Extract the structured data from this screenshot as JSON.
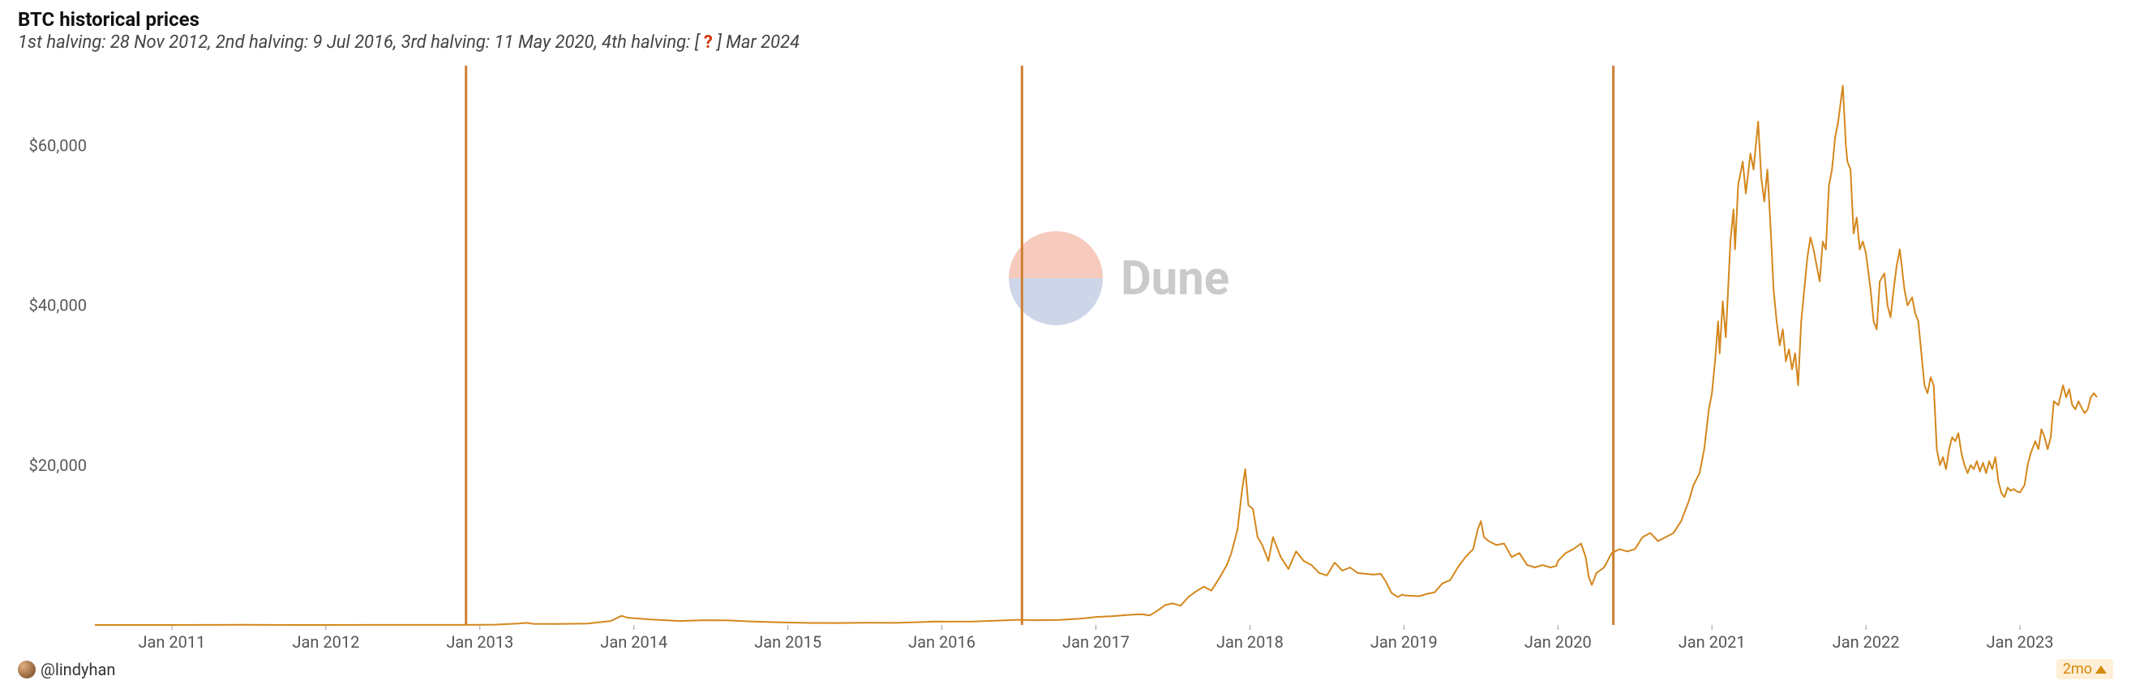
{
  "title": "BTC historical prices",
  "subtitle": {
    "prefix": "1st halving: 28 Nov 2012, 2nd halving: 9 Jul 2016, 3rd halving: 11 May 2020, 4th halving: [ ",
    "qmark": "?",
    "suffix": " ] Mar 2024"
  },
  "author": "@lindyhan",
  "age_badge": "2mo",
  "chart": {
    "type": "line",
    "line_color": "#d4871c",
    "line_width": 2,
    "background_color": "#ffffff",
    "halving_line_color": "#cd7f32",
    "halving_line_width": 3,
    "ylim": [
      0,
      70000
    ],
    "ytick_step": 20000,
    "ytick_labels": [
      "$20,000",
      "$40,000",
      "$60,000"
    ],
    "ytick_values": [
      20000,
      40000,
      60000
    ],
    "xlim": [
      2010.5,
      2023.5
    ],
    "xtick_values": [
      2011,
      2012,
      2013,
      2014,
      2015,
      2016,
      2017,
      2018,
      2019,
      2020,
      2021,
      2022,
      2023
    ],
    "xtick_labels": [
      "Jan 2011",
      "Jan 2012",
      "Jan 2013",
      "Jan 2014",
      "Jan 2015",
      "Jan 2016",
      "Jan 2017",
      "Jan 2018",
      "Jan 2019",
      "Jan 2020",
      "Jan 2021",
      "Jan 2022",
      "Jan 2023"
    ],
    "halvings_x": [
      2012.91,
      2016.52,
      2020.36
    ],
    "tick_font_size": 20,
    "tick_color": "#555555",
    "axis_line_color": "#cccccc",
    "watermark": {
      "text": "Dune",
      "top_color": "#f4b3a3",
      "bottom_color": "#b8c3de",
      "text_color": "#bdbdbd"
    },
    "series": [
      [
        2010.5,
        0.1
      ],
      [
        2010.7,
        0.2
      ],
      [
        2010.9,
        0.3
      ],
      [
        2011.0,
        0.4
      ],
      [
        2011.3,
        8
      ],
      [
        2011.45,
        30
      ],
      [
        2011.6,
        12
      ],
      [
        2011.8,
        5
      ],
      [
        2012.0,
        5
      ],
      [
        2012.3,
        6
      ],
      [
        2012.6,
        10
      ],
      [
        2012.9,
        13
      ],
      [
        2013.0,
        20
      ],
      [
        2013.1,
        40
      ],
      [
        2013.25,
        180
      ],
      [
        2013.3,
        260
      ],
      [
        2013.35,
        140
      ],
      [
        2013.5,
        120
      ],
      [
        2013.7,
        180
      ],
      [
        2013.85,
        500
      ],
      [
        2013.92,
        1150
      ],
      [
        2013.96,
        900
      ],
      [
        2014.0,
        850
      ],
      [
        2014.1,
        700
      ],
      [
        2014.2,
        600
      ],
      [
        2014.3,
        500
      ],
      [
        2014.45,
        600
      ],
      [
        2014.6,
        580
      ],
      [
        2014.75,
        450
      ],
      [
        2014.9,
        350
      ],
      [
        2015.0,
        300
      ],
      [
        2015.15,
        250
      ],
      [
        2015.3,
        240
      ],
      [
        2015.5,
        280
      ],
      [
        2015.7,
        260
      ],
      [
        2015.85,
        350
      ],
      [
        2015.95,
        430
      ],
      [
        2016.0,
        420
      ],
      [
        2016.2,
        430
      ],
      [
        2016.4,
        570
      ],
      [
        2016.5,
        650
      ],
      [
        2016.6,
        600
      ],
      [
        2016.75,
        620
      ],
      [
        2016.9,
        780
      ],
      [
        2016.98,
        950
      ],
      [
        2017.0,
        1000
      ],
      [
        2017.1,
        1100
      ],
      [
        2017.2,
        1250
      ],
      [
        2017.3,
        1350
      ],
      [
        2017.35,
        1200
      ],
      [
        2017.4,
        1800
      ],
      [
        2017.45,
        2500
      ],
      [
        2017.5,
        2700
      ],
      [
        2017.55,
        2400
      ],
      [
        2017.6,
        3500
      ],
      [
        2017.65,
        4200
      ],
      [
        2017.7,
        4800
      ],
      [
        2017.75,
        4300
      ],
      [
        2017.8,
        5800
      ],
      [
        2017.85,
        7500
      ],
      [
        2017.88,
        9000
      ],
      [
        2017.92,
        12000
      ],
      [
        2017.95,
        17000
      ],
      [
        2017.97,
        19500
      ],
      [
        2017.99,
        15000
      ],
      [
        2018.02,
        14500
      ],
      [
        2018.05,
        11000
      ],
      [
        2018.08,
        10000
      ],
      [
        2018.12,
        8000
      ],
      [
        2018.15,
        11000
      ],
      [
        2018.2,
        8500
      ],
      [
        2018.25,
        7000
      ],
      [
        2018.3,
        9200
      ],
      [
        2018.35,
        8000
      ],
      [
        2018.4,
        7500
      ],
      [
        2018.45,
        6500
      ],
      [
        2018.5,
        6200
      ],
      [
        2018.55,
        7800
      ],
      [
        2018.6,
        6800
      ],
      [
        2018.65,
        7200
      ],
      [
        2018.7,
        6500
      ],
      [
        2018.75,
        6400
      ],
      [
        2018.8,
        6300
      ],
      [
        2018.85,
        6400
      ],
      [
        2018.88,
        5500
      ],
      [
        2018.92,
        4000
      ],
      [
        2018.96,
        3500
      ],
      [
        2018.99,
        3800
      ],
      [
        2019.0,
        3700
      ],
      [
        2019.1,
        3600
      ],
      [
        2019.15,
        3900
      ],
      [
        2019.2,
        4100
      ],
      [
        2019.25,
        5200
      ],
      [
        2019.3,
        5600
      ],
      [
        2019.35,
        7200
      ],
      [
        2019.4,
        8500
      ],
      [
        2019.45,
        9500
      ],
      [
        2019.48,
        12000
      ],
      [
        2019.5,
        13000
      ],
      [
        2019.52,
        11000
      ],
      [
        2019.55,
        10500
      ],
      [
        2019.6,
        10000
      ],
      [
        2019.65,
        10200
      ],
      [
        2019.7,
        8500
      ],
      [
        2019.75,
        9000
      ],
      [
        2019.8,
        7500
      ],
      [
        2019.85,
        7200
      ],
      [
        2019.9,
        7500
      ],
      [
        2019.95,
        7200
      ],
      [
        2019.99,
        7400
      ],
      [
        2020.0,
        8000
      ],
      [
        2020.05,
        9000
      ],
      [
        2020.1,
        9500
      ],
      [
        2020.15,
        10200
      ],
      [
        2020.18,
        8500
      ],
      [
        2020.2,
        6000
      ],
      [
        2020.22,
        5000
      ],
      [
        2020.25,
        6500
      ],
      [
        2020.3,
        7200
      ],
      [
        2020.35,
        9000
      ],
      [
        2020.4,
        9500
      ],
      [
        2020.45,
        9200
      ],
      [
        2020.5,
        9500
      ],
      [
        2020.55,
        11000
      ],
      [
        2020.6,
        11500
      ],
      [
        2020.65,
        10500
      ],
      [
        2020.7,
        11000
      ],
      [
        2020.75,
        11500
      ],
      [
        2020.8,
        13000
      ],
      [
        2020.85,
        15500
      ],
      [
        2020.88,
        17500
      ],
      [
        2020.92,
        19000
      ],
      [
        2020.95,
        22000
      ],
      [
        2020.98,
        27000
      ],
      [
        2021.0,
        29000
      ],
      [
        2021.02,
        33000
      ],
      [
        2021.04,
        38000
      ],
      [
        2021.05,
        34000
      ],
      [
        2021.07,
        40500
      ],
      [
        2021.09,
        36000
      ],
      [
        2021.12,
        48000
      ],
      [
        2021.14,
        52000
      ],
      [
        2021.15,
        47000
      ],
      [
        2021.17,
        55000
      ],
      [
        2021.2,
        58000
      ],
      [
        2021.22,
        54000
      ],
      [
        2021.25,
        59000
      ],
      [
        2021.27,
        57000
      ],
      [
        2021.3,
        63000
      ],
      [
        2021.32,
        56000
      ],
      [
        2021.34,
        53000
      ],
      [
        2021.36,
        57000
      ],
      [
        2021.38,
        50000
      ],
      [
        2021.4,
        42000
      ],
      [
        2021.42,
        38000
      ],
      [
        2021.44,
        35000
      ],
      [
        2021.46,
        37000
      ],
      [
        2021.48,
        33000
      ],
      [
        2021.5,
        34500
      ],
      [
        2021.52,
        32000
      ],
      [
        2021.54,
        34000
      ],
      [
        2021.56,
        30000
      ],
      [
        2021.58,
        38000
      ],
      [
        2021.6,
        42000
      ],
      [
        2021.62,
        46000
      ],
      [
        2021.64,
        48500
      ],
      [
        2021.66,
        47000
      ],
      [
        2021.68,
        45000
      ],
      [
        2021.7,
        43000
      ],
      [
        2021.72,
        48000
      ],
      [
        2021.74,
        47000
      ],
      [
        2021.76,
        55000
      ],
      [
        2021.78,
        57000
      ],
      [
        2021.8,
        61000
      ],
      [
        2021.82,
        63000
      ],
      [
        2021.84,
        66000
      ],
      [
        2021.85,
        67500
      ],
      [
        2021.87,
        60000
      ],
      [
        2021.88,
        58000
      ],
      [
        2021.9,
        57000
      ],
      [
        2021.92,
        49000
      ],
      [
        2021.94,
        51000
      ],
      [
        2021.96,
        47000
      ],
      [
        2021.98,
        48000
      ],
      [
        2022.0,
        46500
      ],
      [
        2022.03,
        42000
      ],
      [
        2022.05,
        38000
      ],
      [
        2022.07,
        37000
      ],
      [
        2022.09,
        43000
      ],
      [
        2022.12,
        44000
      ],
      [
        2022.14,
        40000
      ],
      [
        2022.16,
        38500
      ],
      [
        2022.18,
        42000
      ],
      [
        2022.2,
        45000
      ],
      [
        2022.22,
        47000
      ],
      [
        2022.25,
        42000
      ],
      [
        2022.27,
        40000
      ],
      [
        2022.3,
        41000
      ],
      [
        2022.32,
        39000
      ],
      [
        2022.34,
        38000
      ],
      [
        2022.36,
        34000
      ],
      [
        2022.38,
        30000
      ],
      [
        2022.4,
        29000
      ],
      [
        2022.42,
        31000
      ],
      [
        2022.44,
        30000
      ],
      [
        2022.46,
        22000
      ],
      [
        2022.48,
        20000
      ],
      [
        2022.5,
        21000
      ],
      [
        2022.52,
        19500
      ],
      [
        2022.54,
        22000
      ],
      [
        2022.56,
        23500
      ],
      [
        2022.58,
        23000
      ],
      [
        2022.6,
        24000
      ],
      [
        2022.62,
        21500
      ],
      [
        2022.64,
        20000
      ],
      [
        2022.66,
        19000
      ],
      [
        2022.68,
        20000
      ],
      [
        2022.7,
        19500
      ],
      [
        2022.72,
        20500
      ],
      [
        2022.74,
        19200
      ],
      [
        2022.76,
        20300
      ],
      [
        2022.78,
        19000
      ],
      [
        2022.8,
        20500
      ],
      [
        2022.82,
        19500
      ],
      [
        2022.84,
        21000
      ],
      [
        2022.86,
        18000
      ],
      [
        2022.88,
        16500
      ],
      [
        2022.9,
        16000
      ],
      [
        2022.92,
        17200
      ],
      [
        2022.94,
        16800
      ],
      [
        2022.96,
        17000
      ],
      [
        2022.98,
        16700
      ],
      [
        2023.0,
        16600
      ],
      [
        2023.03,
        17500
      ],
      [
        2023.05,
        20000
      ],
      [
        2023.07,
        21500
      ],
      [
        2023.1,
        23000
      ],
      [
        2023.12,
        22000
      ],
      [
        2023.14,
        24500
      ],
      [
        2023.16,
        23500
      ],
      [
        2023.18,
        22000
      ],
      [
        2023.2,
        23500
      ],
      [
        2023.22,
        28000
      ],
      [
        2023.25,
        27500
      ],
      [
        2023.28,
        30000
      ],
      [
        2023.3,
        28500
      ],
      [
        2023.32,
        29500
      ],
      [
        2023.34,
        27500
      ],
      [
        2023.36,
        27000
      ],
      [
        2023.38,
        28000
      ],
      [
        2023.4,
        27200
      ],
      [
        2023.42,
        26500
      ],
      [
        2023.44,
        27000
      ],
      [
        2023.46,
        28500
      ],
      [
        2023.48,
        29000
      ],
      [
        2023.5,
        28500
      ]
    ]
  }
}
